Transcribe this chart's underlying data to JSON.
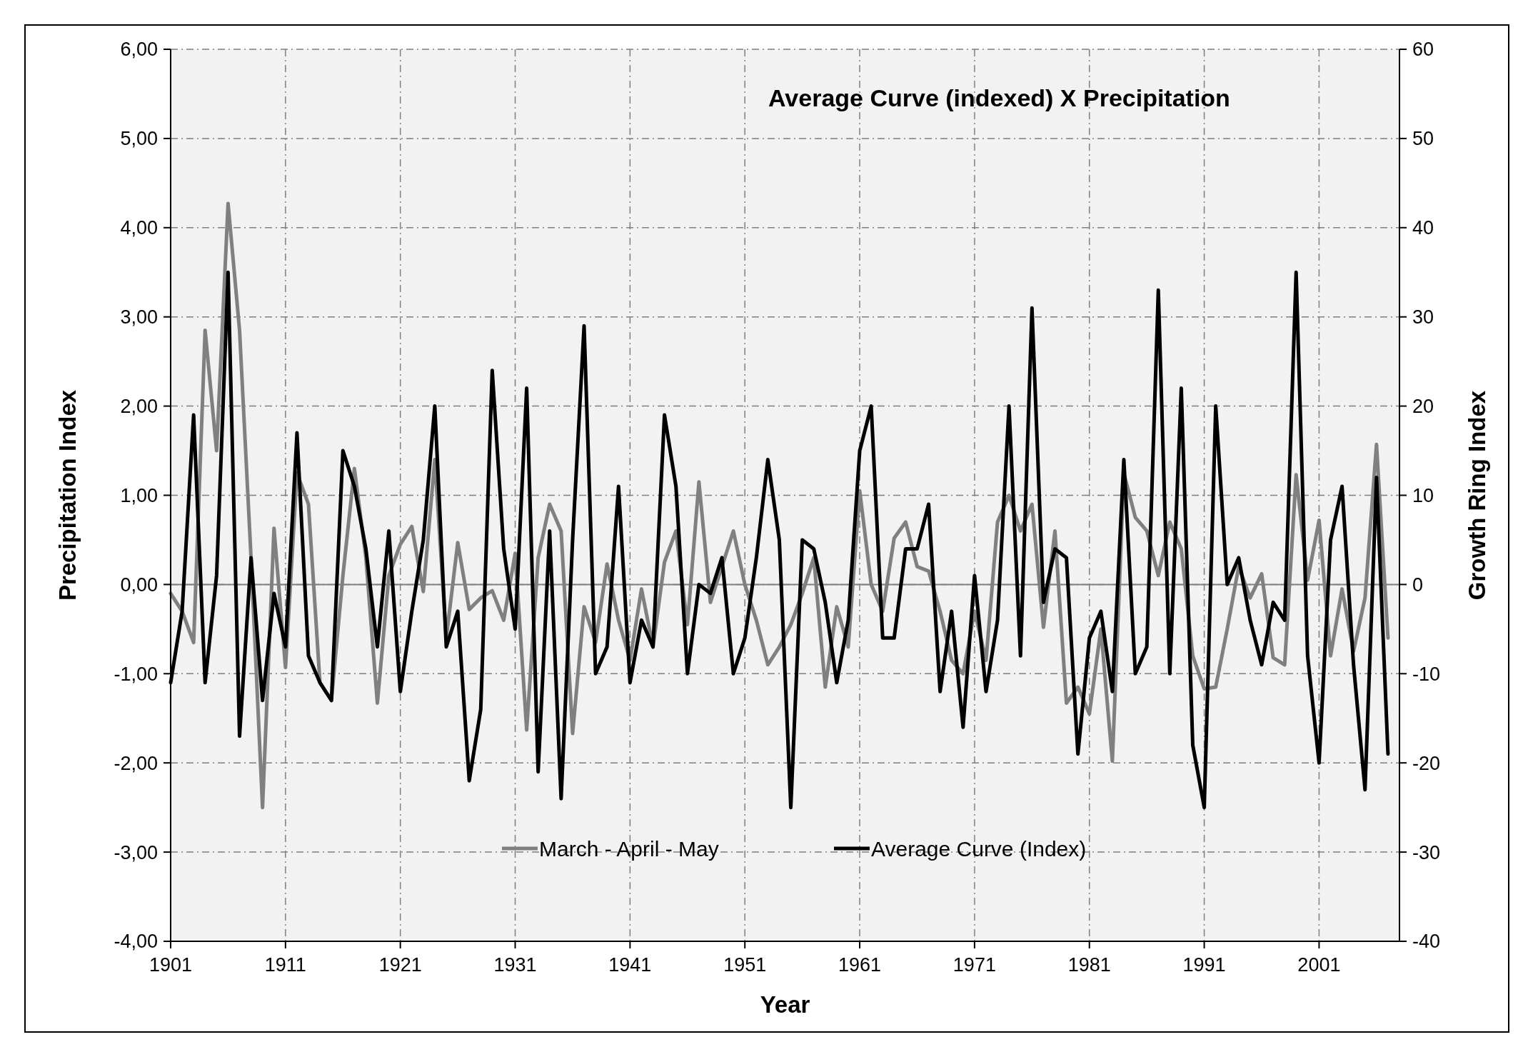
{
  "chart_data": {
    "type": "line",
    "title": "Average Curve (indexed) X Precipitation",
    "xlabel": "Year",
    "ylabel": "Precipitation Index",
    "y2label": "Growth Ring Index",
    "x": [
      1901,
      1902,
      1903,
      1904,
      1905,
      1906,
      1907,
      1908,
      1909,
      1910,
      1911,
      1912,
      1913,
      1914,
      1915,
      1916,
      1917,
      1918,
      1919,
      1920,
      1921,
      1922,
      1923,
      1924,
      1925,
      1926,
      1927,
      1928,
      1929,
      1930,
      1931,
      1932,
      1933,
      1934,
      1935,
      1936,
      1937,
      1938,
      1939,
      1940,
      1941,
      1942,
      1943,
      1944,
      1945,
      1946,
      1947,
      1948,
      1949,
      1950,
      1951,
      1952,
      1953,
      1954,
      1955,
      1956,
      1957,
      1958,
      1959,
      1960,
      1961,
      1962,
      1963,
      1964,
      1965,
      1966,
      1967,
      1968,
      1969,
      1970,
      1971,
      1972,
      1973,
      1974,
      1975,
      1976,
      1977,
      1978,
      1979,
      1980,
      1981,
      1982,
      1983,
      1984,
      1985,
      1986,
      1987,
      1988,
      1989,
      1990,
      1991,
      1992,
      1993,
      1994,
      1995,
      1996,
      1997,
      1998,
      1999,
      2000,
      2001,
      2002,
      2003,
      2004,
      2005,
      2006,
      2007
    ],
    "series": [
      {
        "name": "March - April - May",
        "color": "#808080",
        "values": [
          -0.1,
          -0.3,
          -0.65,
          2.85,
          1.5,
          4.27,
          2.85,
          0.3,
          -2.5,
          0.63,
          -0.93,
          1.25,
          0.9,
          -1.1,
          -1.3,
          0.1,
          1.3,
          0.3,
          -1.33,
          0.1,
          0.45,
          0.65,
          -0.08,
          1.4,
          -0.6,
          0.47,
          -0.28,
          -0.15,
          -0.07,
          -0.4,
          0.35,
          -1.63,
          0.3,
          0.9,
          0.6,
          -1.67,
          -0.25,
          -0.65,
          0.23,
          -0.4,
          -0.85,
          -0.05,
          -0.7,
          0.25,
          0.6,
          -0.45,
          1.15,
          -0.2,
          0.2,
          0.6,
          0,
          -0.4,
          -0.9,
          -0.7,
          -0.45,
          -0.1,
          0.3,
          -1.15,
          -0.25,
          -0.7,
          1.05,
          0,
          -0.3,
          0.52,
          0.7,
          0.2,
          0.15,
          -0.3,
          -0.85,
          -1.0,
          -0.3,
          -0.85,
          0.7,
          1.0,
          0.6,
          0.9,
          -0.48,
          0.6,
          -1.33,
          -1.15,
          -1.45,
          -0.5,
          -1.98,
          1.25,
          0.75,
          0.6,
          0.1,
          0.7,
          0.4,
          -0.8,
          -1.17,
          -1.15,
          -0.5,
          0.2,
          -0.15,
          0.12,
          -0.82,
          -0.9,
          1.23,
          0.05,
          0.72,
          -0.8,
          -0.05,
          -0.75,
          -0.15,
          1.57,
          -0.6
        ]
      },
      {
        "name": "Average Curve (Index)",
        "color": "#000000",
        "axis": "y2",
        "values": [
          -11,
          -3,
          19,
          -11,
          1,
          35,
          -17,
          3,
          -13,
          -1,
          -7,
          17,
          -8,
          -11,
          -13,
          15,
          11,
          4,
          -7,
          6,
          -12,
          -3,
          5,
          20,
          -7,
          -3,
          -22,
          -14,
          24,
          4,
          -5,
          22,
          -21,
          6,
          -24,
          5,
          29,
          -10,
          -7,
          11,
          -11,
          -4,
          -7,
          19,
          11,
          -10,
          0,
          -1,
          3,
          -10,
          -6,
          3,
          14,
          5,
          -25,
          5,
          4,
          -2,
          -11,
          -4,
          15,
          20,
          -6,
          -6,
          4,
          4,
          9,
          -12,
          -3,
          -16,
          1,
          -12,
          -4,
          20,
          -8,
          31,
          -2,
          4,
          3,
          -19,
          -6,
          -3,
          -12,
          14,
          -10,
          -7,
          33,
          -10,
          22,
          -18,
          -25,
          20,
          0,
          3,
          -4,
          -9,
          -2,
          -4,
          35,
          -8,
          -20,
          5,
          11,
          -9,
          -23,
          12,
          -19
        ]
      }
    ],
    "xlim": [
      1901,
      2008
    ],
    "xticks": [
      1901,
      1911,
      1921,
      1931,
      1941,
      1951,
      1961,
      1971,
      1981,
      1991,
      2001
    ],
    "ylim": [
      -4,
      6
    ],
    "yticks": [
      {
        "value": -4,
        "label": "-4,00"
      },
      {
        "value": -3,
        "label": "-3,00"
      },
      {
        "value": -2,
        "label": "-2,00"
      },
      {
        "value": -1,
        "label": "-1,00"
      },
      {
        "value": 0,
        "label": "0,00"
      },
      {
        "value": 1,
        "label": "1,00"
      },
      {
        "value": 2,
        "label": "2,00"
      },
      {
        "value": 3,
        "label": "3,00"
      },
      {
        "value": 4,
        "label": "4,00"
      },
      {
        "value": 5,
        "label": "5,00"
      },
      {
        "value": 6,
        "label": "6,00"
      }
    ],
    "y2lim": [
      -40,
      60
    ],
    "y2ticks": [
      -40,
      -30,
      -20,
      -10,
      0,
      10,
      20,
      30,
      40,
      50,
      60
    ],
    "ref_lines": [
      {
        "axis": "y",
        "value": 0,
        "color": "#808080"
      }
    ],
    "grid": true,
    "legend": "bottom",
    "line_style": "solid"
  }
}
